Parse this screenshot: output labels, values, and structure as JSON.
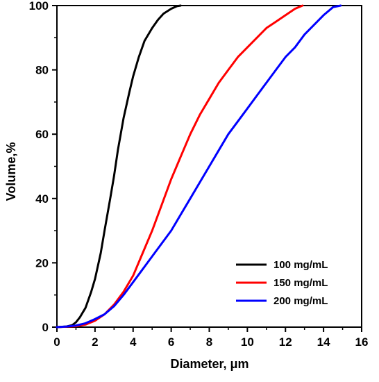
{
  "chart_data": {
    "type": "line",
    "xlabel": "Diameter, μm",
    "ylabel": "Volume,%",
    "xlim": [
      0,
      16
    ],
    "ylim": [
      0,
      100
    ],
    "xticks": [
      0,
      2,
      4,
      6,
      8,
      10,
      12,
      14,
      16
    ],
    "yticks": [
      0,
      20,
      40,
      60,
      80,
      100
    ],
    "legend_position": "bottom-right",
    "grid": false,
    "series": [
      {
        "name": "100 mg/mL",
        "color": "#000000",
        "points": [
          [
            0,
            0
          ],
          [
            0.5,
            0.2
          ],
          [
            0.8,
            0.6
          ],
          [
            1.0,
            1.5
          ],
          [
            1.2,
            3
          ],
          [
            1.5,
            6
          ],
          [
            1.8,
            11
          ],
          [
            2.0,
            15
          ],
          [
            2.3,
            23
          ],
          [
            2.5,
            30
          ],
          [
            2.8,
            40
          ],
          [
            3.0,
            47
          ],
          [
            3.2,
            55
          ],
          [
            3.5,
            65
          ],
          [
            3.8,
            73
          ],
          [
            4.0,
            78
          ],
          [
            4.3,
            84
          ],
          [
            4.6,
            89
          ],
          [
            5.0,
            93
          ],
          [
            5.3,
            95.5
          ],
          [
            5.6,
            97.5
          ],
          [
            6.0,
            99
          ],
          [
            6.3,
            99.8
          ],
          [
            6.5,
            100
          ]
        ]
      },
      {
        "name": "150 mg/mL",
        "color": "#ff0000",
        "points": [
          [
            0,
            0
          ],
          [
            1.0,
            0.3
          ],
          [
            1.5,
            0.8
          ],
          [
            2.0,
            2
          ],
          [
            2.5,
            4
          ],
          [
            3.0,
            7
          ],
          [
            3.5,
            11
          ],
          [
            4.0,
            16
          ],
          [
            4.5,
            23
          ],
          [
            5.0,
            30
          ],
          [
            5.5,
            38
          ],
          [
            6.0,
            46
          ],
          [
            6.5,
            53
          ],
          [
            7.0,
            60
          ],
          [
            7.5,
            66
          ],
          [
            8.0,
            71
          ],
          [
            8.5,
            76
          ],
          [
            9.0,
            80
          ],
          [
            9.5,
            84
          ],
          [
            10.0,
            87
          ],
          [
            10.5,
            90
          ],
          [
            11.0,
            93
          ],
          [
            11.5,
            95
          ],
          [
            12.0,
            97
          ],
          [
            12.5,
            99
          ],
          [
            12.9,
            100
          ]
        ]
      },
      {
        "name": "200 mg/mL",
        "color": "#0000ff",
        "points": [
          [
            0,
            0
          ],
          [
            0.5,
            0.2
          ],
          [
            1.0,
            0.5
          ],
          [
            1.5,
            1.2
          ],
          [
            2.0,
            2.5
          ],
          [
            2.5,
            4
          ],
          [
            3.0,
            6.5
          ],
          [
            3.5,
            10
          ],
          [
            4.0,
            14
          ],
          [
            4.5,
            18
          ],
          [
            5.0,
            22
          ],
          [
            5.5,
            26
          ],
          [
            6.0,
            30
          ],
          [
            6.5,
            35
          ],
          [
            7.0,
            40
          ],
          [
            7.5,
            45
          ],
          [
            8.0,
            50
          ],
          [
            8.5,
            55
          ],
          [
            9.0,
            60
          ],
          [
            9.5,
            64
          ],
          [
            10.0,
            68
          ],
          [
            10.5,
            72
          ],
          [
            11.0,
            76
          ],
          [
            11.5,
            80
          ],
          [
            12.0,
            84
          ],
          [
            12.5,
            87
          ],
          [
            13.0,
            91
          ],
          [
            13.5,
            94
          ],
          [
            14.0,
            97
          ],
          [
            14.5,
            99.5
          ],
          [
            14.9,
            100
          ]
        ]
      }
    ]
  }
}
